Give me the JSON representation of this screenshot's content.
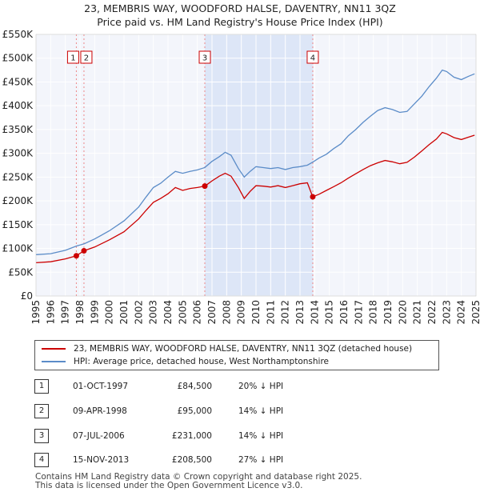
{
  "title": {
    "line1": "23, MEMBRIS WAY, WOODFORD HALSE, DAVENTRY, NN11 3QZ",
    "line2": "Price paid vs. HM Land Registry's House Price Index (HPI)"
  },
  "chart_data": {
    "type": "line",
    "x_range": [
      1995,
      2025
    ],
    "ylim": [
      0,
      550000
    ],
    "y_ticks": [
      {
        "value": 0,
        "label": "£0"
      },
      {
        "value": 50000,
        "label": "£50K"
      },
      {
        "value": 100000,
        "label": "£100K"
      },
      {
        "value": 150000,
        "label": "£150K"
      },
      {
        "value": 200000,
        "label": "£200K"
      },
      {
        "value": 250000,
        "label": "£250K"
      },
      {
        "value": 300000,
        "label": "£300K"
      },
      {
        "value": 350000,
        "label": "£350K"
      },
      {
        "value": 400000,
        "label": "£400K"
      },
      {
        "value": 450000,
        "label": "£450K"
      },
      {
        "value": 500000,
        "label": "£500K"
      },
      {
        "value": 550000,
        "label": "£550K"
      }
    ],
    "x_ticks": [
      "1995",
      "1996",
      "1997",
      "1998",
      "1999",
      "2000",
      "2001",
      "2002",
      "2003",
      "2004",
      "2005",
      "2006",
      "2007",
      "2008",
      "2009",
      "2010",
      "2011",
      "2012",
      "2013",
      "2014",
      "2015",
      "2016",
      "2017",
      "2018",
      "2019",
      "2020",
      "2021",
      "2022",
      "2023",
      "2024",
      "2025"
    ],
    "shaded_region": [
      2006.51,
      2013.88
    ],
    "series": [
      {
        "name": "HPI: Average price, detached house, West Northamptonshire",
        "color": "#5b8cc8",
        "points": [
          [
            1995.0,
            87000
          ],
          [
            1996.0,
            89000
          ],
          [
            1997.0,
            96000
          ],
          [
            1997.75,
            105000
          ],
          [
            1998.3,
            110000
          ],
          [
            1999.0,
            120000
          ],
          [
            2000.0,
            137000
          ],
          [
            2001.0,
            158000
          ],
          [
            2002.0,
            187000
          ],
          [
            2002.5,
            208000
          ],
          [
            2003.0,
            228000
          ],
          [
            2003.5,
            237000
          ],
          [
            2004.0,
            250000
          ],
          [
            2004.5,
            262000
          ],
          [
            2005.0,
            258000
          ],
          [
            2005.5,
            262000
          ],
          [
            2006.0,
            265000
          ],
          [
            2006.5,
            270000
          ],
          [
            2007.0,
            283000
          ],
          [
            2007.5,
            293000
          ],
          [
            2007.9,
            302000
          ],
          [
            2008.3,
            296000
          ],
          [
            2008.8,
            268000
          ],
          [
            2009.2,
            250000
          ],
          [
            2009.6,
            262000
          ],
          [
            2010.0,
            272000
          ],
          [
            2010.5,
            270000
          ],
          [
            2011.0,
            268000
          ],
          [
            2011.5,
            270000
          ],
          [
            2012.0,
            266000
          ],
          [
            2012.5,
            270000
          ],
          [
            2013.0,
            272000
          ],
          [
            2013.5,
            275000
          ],
          [
            2013.9,
            282000
          ],
          [
            2014.3,
            290000
          ],
          [
            2014.8,
            298000
          ],
          [
            2015.3,
            310000
          ],
          [
            2015.8,
            320000
          ],
          [
            2016.3,
            337000
          ],
          [
            2016.8,
            350000
          ],
          [
            2017.3,
            365000
          ],
          [
            2017.8,
            378000
          ],
          [
            2018.3,
            390000
          ],
          [
            2018.8,
            396000
          ],
          [
            2019.3,
            392000
          ],
          [
            2019.8,
            386000
          ],
          [
            2020.3,
            388000
          ],
          [
            2020.8,
            404000
          ],
          [
            2021.3,
            420000
          ],
          [
            2021.8,
            440000
          ],
          [
            2022.3,
            458000
          ],
          [
            2022.7,
            475000
          ],
          [
            2023.0,
            472000
          ],
          [
            2023.5,
            460000
          ],
          [
            2024.0,
            455000
          ],
          [
            2024.5,
            462000
          ],
          [
            2024.9,
            467000
          ]
        ]
      },
      {
        "name": "23, MEMBRIS WAY, WOODFORD HALSE, DAVENTRY, NN11 3QZ (detached house)",
        "color": "#cc0000",
        "points": [
          [
            1995.0,
            70000
          ],
          [
            1996.0,
            72000
          ],
          [
            1997.0,
            78000
          ],
          [
            1997.75,
            84500
          ],
          [
            1998.27,
            95000
          ],
          [
            1999.0,
            103000
          ],
          [
            2000.0,
            118000
          ],
          [
            2001.0,
            135000
          ],
          [
            2002.0,
            162000
          ],
          [
            2002.5,
            180000
          ],
          [
            2003.0,
            197000
          ],
          [
            2003.5,
            205000
          ],
          [
            2004.0,
            215000
          ],
          [
            2004.5,
            228000
          ],
          [
            2005.0,
            222000
          ],
          [
            2005.5,
            226000
          ],
          [
            2006.0,
            228000
          ],
          [
            2006.51,
            231000
          ],
          [
            2007.0,
            242000
          ],
          [
            2007.5,
            252000
          ],
          [
            2007.9,
            258000
          ],
          [
            2008.3,
            252000
          ],
          [
            2008.8,
            228000
          ],
          [
            2009.2,
            205000
          ],
          [
            2009.6,
            220000
          ],
          [
            2010.0,
            232000
          ],
          [
            2010.5,
            231000
          ],
          [
            2011.0,
            229000
          ],
          [
            2011.5,
            232000
          ],
          [
            2012.0,
            228000
          ],
          [
            2012.5,
            232000
          ],
          [
            2013.0,
            236000
          ],
          [
            2013.5,
            238000
          ],
          [
            2013.87,
            208500
          ],
          [
            2014.3,
            214000
          ],
          [
            2014.8,
            222000
          ],
          [
            2015.3,
            230000
          ],
          [
            2015.8,
            238000
          ],
          [
            2016.3,
            248000
          ],
          [
            2016.8,
            257000
          ],
          [
            2017.3,
            266000
          ],
          [
            2017.8,
            274000
          ],
          [
            2018.3,
            280000
          ],
          [
            2018.8,
            285000
          ],
          [
            2019.3,
            282000
          ],
          [
            2019.8,
            278000
          ],
          [
            2020.3,
            281000
          ],
          [
            2020.8,
            292000
          ],
          [
            2021.3,
            305000
          ],
          [
            2021.8,
            318000
          ],
          [
            2022.3,
            330000
          ],
          [
            2022.7,
            344000
          ],
          [
            2023.0,
            341000
          ],
          [
            2023.5,
            333000
          ],
          [
            2024.0,
            329000
          ],
          [
            2024.5,
            334000
          ],
          [
            2024.9,
            338000
          ]
        ]
      }
    ],
    "sales": [
      {
        "id": "1",
        "x": 1997.75,
        "price": 84500
      },
      {
        "id": "2",
        "x": 1998.27,
        "price": 95000
      },
      {
        "id": "3",
        "x": 2006.51,
        "price": 231000
      },
      {
        "id": "4",
        "x": 2013.87,
        "price": 208500
      }
    ]
  },
  "legend": {
    "property": "23, MEMBRIS WAY, WOODFORD HALSE, DAVENTRY, NN11 3QZ (detached house)",
    "hpi": "HPI: Average price, detached house, West Northamptonshire",
    "property_color": "#cc0000",
    "hpi_color": "#5b8cc8"
  },
  "sales_table": [
    {
      "num": "1",
      "date": "01-OCT-1997",
      "price": "£84,500",
      "hpi": "20% ↓ HPI"
    },
    {
      "num": "2",
      "date": "09-APR-1998",
      "price": "£95,000",
      "hpi": "14% ↓ HPI"
    },
    {
      "num": "3",
      "date": "07-JUL-2006",
      "price": "£231,000",
      "hpi": "14% ↓ HPI"
    },
    {
      "num": "4",
      "date": "15-NOV-2013",
      "price": "£208,500",
      "hpi": "27% ↓ HPI"
    }
  ],
  "footer": {
    "line1": "Contains HM Land Registry data © Crown copyright and database right 2025.",
    "line2": "This data is licensed under the Open Government Licence v3.0."
  }
}
